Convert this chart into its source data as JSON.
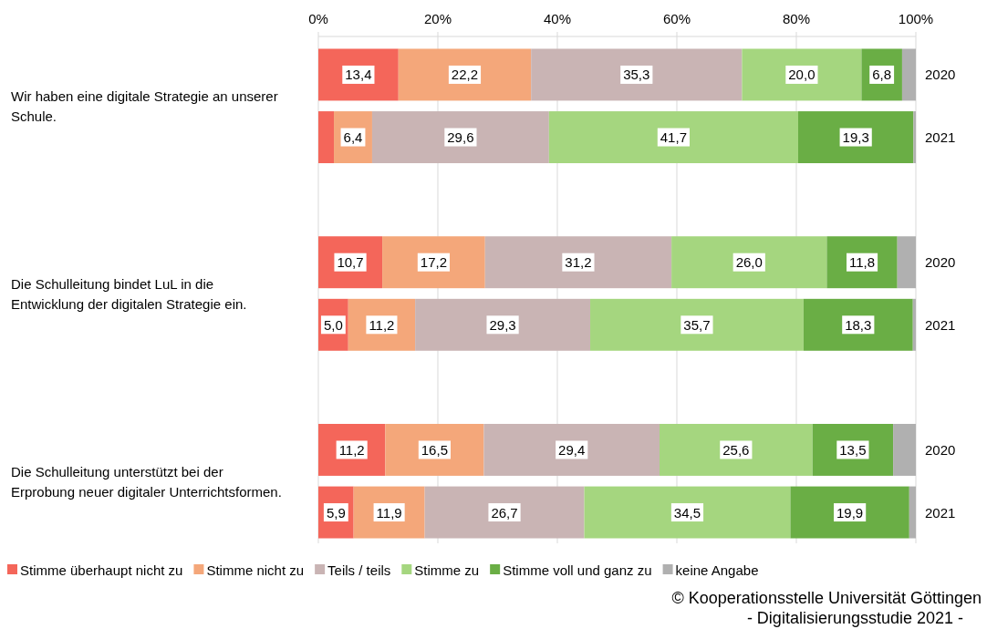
{
  "chart_data": {
    "type": "bar",
    "orientation": "horizontal",
    "stacked": true,
    "categories": [
      "2020",
      "2021",
      null,
      "2020",
      "2021",
      null,
      "2020",
      "2021"
    ],
    "series": [
      {
        "name": "Stimme überhaupt nicht zu",
        "color": "#f4665a",
        "values": [
          13.4,
          2.6,
          null,
          10.7,
          5.0,
          null,
          11.2,
          5.9
        ],
        "value_labels": [
          "13,4",
          null,
          null,
          "10,7",
          "5,0",
          null,
          "11,2",
          "5,9"
        ]
      },
      {
        "name": "Stimme nicht zu",
        "color": "#f4a77a",
        "values": [
          22.2,
          6.4,
          null,
          17.2,
          11.2,
          null,
          16.5,
          11.9
        ],
        "value_labels": [
          "22,2",
          "6,4",
          null,
          "17,2",
          "11,2",
          null,
          "16,5",
          "11,9"
        ]
      },
      {
        "name": "Teils / teils",
        "color": "#c9b4b4",
        "values": [
          35.3,
          29.6,
          null,
          31.2,
          29.3,
          null,
          29.4,
          26.7
        ],
        "value_labels": [
          "35,3",
          "29,6",
          null,
          "31,2",
          "29,3",
          null,
          "29,4",
          "26,7"
        ]
      },
      {
        "name": "Stimme zu",
        "color": "#a5d67f",
        "values": [
          20.0,
          41.7,
          null,
          26.0,
          35.7,
          null,
          25.6,
          34.5
        ],
        "value_labels": [
          "20,0",
          "41,7",
          null,
          "26,0",
          "35,7",
          null,
          "25,6",
          "34,5"
        ]
      },
      {
        "name": "Stimme voll und ganz zu",
        "color": "#6aae45",
        "values": [
          6.8,
          19.3,
          null,
          11.8,
          18.3,
          null,
          13.5,
          19.9
        ],
        "value_labels": [
          "6,8",
          "19,3",
          null,
          "11,8",
          "18,3",
          null,
          "13,5",
          "19,9"
        ]
      },
      {
        "name": "keine Angabe",
        "color": "#b0b0b0",
        "values": [
          2.3,
          0.4,
          null,
          3.1,
          0.5,
          null,
          3.8,
          1.1
        ],
        "value_labels": [
          null,
          null,
          null,
          null,
          null,
          null,
          null,
          null
        ]
      }
    ],
    "xlim": [
      0,
      100
    ],
    "xticks": [
      {
        "value": 0,
        "label": "0%"
      },
      {
        "value": 20,
        "label": "20%"
      },
      {
        "value": 40,
        "label": "40%"
      },
      {
        "value": 60,
        "label": "60%"
      },
      {
        "value": 80,
        "label": "80%"
      },
      {
        "value": 100,
        "label": "100%"
      }
    ],
    "grid": "x",
    "legend": "bottom",
    "annotations": [
      "Wir haben eine digitale Strategie an unserer Schule.",
      "Die Schulleitung bindet LuL in die Entwicklung der digitalen Strategie ein.",
      "Die Schulleitung unterstützt bei der Erprobung neuer digitaler Unterrichtsformen.",
      "© Kooperationsstelle Universität Göttingen",
      "- Digitalisierungsstudie 2021 -"
    ]
  }
}
